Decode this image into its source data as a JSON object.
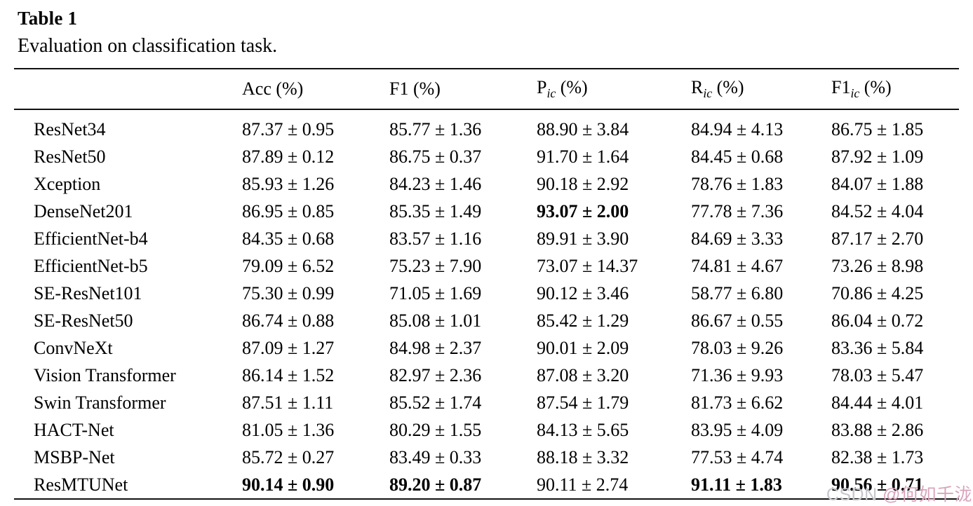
{
  "title": "Table 1",
  "caption": "Evaluation on classification task.",
  "table": {
    "unit": "(%)",
    "columns": [
      {
        "text": "Acc",
        "sub": ""
      },
      {
        "text": "F1",
        "sub": ""
      },
      {
        "text": "P",
        "sub": "ic"
      },
      {
        "text": "R",
        "sub": "ic"
      },
      {
        "text": "F1",
        "sub": "ic"
      }
    ],
    "rows": [
      {
        "model": "ResNet34",
        "cells": [
          "87.37 ± 0.95",
          "85.77 ± 1.36",
          "88.90 ± 3.84",
          "84.94 ± 4.13",
          "86.75 ± 1.85"
        ],
        "bold": []
      },
      {
        "model": "ResNet50",
        "cells": [
          "87.89 ± 0.12",
          "86.75 ± 0.37",
          "91.70 ± 1.64",
          "84.45 ± 0.68",
          "87.92 ± 1.09"
        ],
        "bold": []
      },
      {
        "model": "Xception",
        "cells": [
          "85.93 ± 1.26",
          "84.23 ± 1.46",
          "90.18 ± 2.92",
          "78.76 ± 1.83",
          "84.07 ± 1.88"
        ],
        "bold": []
      },
      {
        "model": "DenseNet201",
        "cells": [
          "86.95 ± 0.85",
          "85.35 ± 1.49",
          "93.07 ± 2.00",
          "77.78 ± 7.36",
          "84.52 ± 4.04"
        ],
        "bold": [
          2
        ]
      },
      {
        "model": "EfficientNet-b4",
        "cells": [
          "84.35 ± 0.68",
          "83.57 ± 1.16",
          "89.91 ± 3.90",
          "84.69 ± 3.33",
          "87.17 ± 2.70"
        ],
        "bold": []
      },
      {
        "model": "EfficientNet-b5",
        "cells": [
          "79.09 ± 6.52",
          "75.23 ± 7.90",
          "73.07 ± 14.37",
          "74.81 ± 4.67",
          "73.26 ± 8.98"
        ],
        "bold": []
      },
      {
        "model": "SE-ResNet101",
        "cells": [
          "75.30 ± 0.99",
          "71.05 ± 1.69",
          "90.12 ± 3.46",
          "58.77 ± 6.80",
          "70.86 ± 4.25"
        ],
        "bold": []
      },
      {
        "model": "SE-ResNet50",
        "cells": [
          "86.74 ± 0.88",
          "85.08 ± 1.01",
          "85.42 ± 1.29",
          "86.67 ± 0.55",
          "86.04 ± 0.72"
        ],
        "bold": []
      },
      {
        "model": "ConvNeXt",
        "cells": [
          "87.09 ± 1.27",
          "84.98 ± 2.37",
          "90.01 ± 2.09",
          "78.03 ± 9.26",
          "83.36 ± 5.84"
        ],
        "bold": []
      },
      {
        "model": "Vision Transformer",
        "cells": [
          "86.14 ± 1.52",
          "82.97 ± 2.36",
          "87.08 ± 3.20",
          "71.36 ± 9.93",
          "78.03 ± 5.47"
        ],
        "bold": []
      },
      {
        "model": "Swin Transformer",
        "cells": [
          "87.51 ± 1.11",
          "85.52 ± 1.74",
          "87.54 ± 1.79",
          "81.73 ± 6.62",
          "84.44 ± 4.01"
        ],
        "bold": []
      },
      {
        "model": "HACT-Net",
        "cells": [
          "81.05 ± 1.36",
          "80.29 ± 1.55",
          "84.13 ± 5.65",
          "83.95 ± 4.09",
          "83.88 ± 2.86"
        ],
        "bold": []
      },
      {
        "model": "MSBP-Net",
        "cells": [
          "85.72 ± 0.27",
          "83.49 ± 0.33",
          "88.18 ± 3.32",
          "77.53 ± 4.74",
          "82.38 ± 1.73"
        ],
        "bold": []
      },
      {
        "model": "ResMTUNet",
        "cells": [
          "90.14 ± 0.90",
          "89.20 ± 0.87",
          "90.11 ± 2.74",
          "91.11 ± 1.83",
          "90.56 ± 0.71"
        ],
        "bold": [
          0,
          1,
          3,
          4
        ]
      }
    ]
  },
  "watermark": {
    "prefix": "CSDN ",
    "handle": "@何如千泷",
    "prefix_color": "#c8c5cd",
    "handle_color": "#d9a4bc"
  }
}
